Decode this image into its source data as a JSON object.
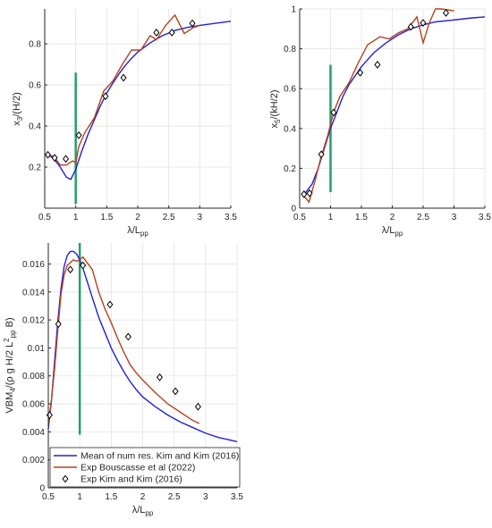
{
  "colors": {
    "mean": "#2121d9",
    "bouscasse": "#b5421c",
    "marker": "#000000",
    "vline": "#23a06a",
    "grid": "#e3e3e3",
    "axis": "#262626"
  },
  "legend": {
    "mean_label": "Mean of num res. Kim and Kim (2016)",
    "bouscasse_label": "Exp Bouscasse et al (2022)",
    "kim_label": "Exp Kim and Kim (2016)"
  },
  "chart_data": [
    {
      "type": "line",
      "xlabel": {
        "main": "λ/L",
        "sub": "pp"
      },
      "ylabel": {
        "prefix": "x",
        "sub": "3",
        "suffix": "/(H/2)"
      },
      "xlim": [
        0.5,
        3.5
      ],
      "ylim": [
        0.0,
        0.97
      ],
      "xticks": [
        "0.5",
        "1",
        "1.5",
        "2",
        "2.5",
        "3",
        "3.5"
      ],
      "yticks": [
        "0.2",
        "0.4",
        "0.6",
        "0.8"
      ],
      "grid": true,
      "vline_x": 1.0,
      "vline_range": [
        0.02,
        0.66
      ],
      "series": [
        {
          "key": "mean",
          "x": [
            0.55,
            0.65,
            0.75,
            0.85,
            0.92,
            1.0,
            1.1,
            1.2,
            1.3,
            1.4,
            1.5,
            1.6,
            1.7,
            1.8,
            1.9,
            2.0,
            2.2,
            2.4,
            2.6,
            2.8,
            3.0,
            3.2,
            3.5
          ],
          "y": [
            0.26,
            0.24,
            0.2,
            0.15,
            0.14,
            0.19,
            0.28,
            0.36,
            0.43,
            0.5,
            0.56,
            0.61,
            0.655,
            0.695,
            0.73,
            0.76,
            0.805,
            0.84,
            0.865,
            0.88,
            0.89,
            0.898,
            0.91
          ]
        },
        {
          "key": "bouscasse",
          "x": [
            0.55,
            0.65,
            0.75,
            0.85,
            0.95,
            1.0,
            1.05,
            1.15,
            1.3,
            1.45,
            1.6,
            1.75,
            1.9,
            2.05,
            2.2,
            2.3,
            2.45,
            2.6,
            2.75,
            2.9,
            3.0
          ],
          "y": [
            0.26,
            0.25,
            0.21,
            0.21,
            0.23,
            0.22,
            0.3,
            0.37,
            0.44,
            0.57,
            0.62,
            0.7,
            0.77,
            0.77,
            0.84,
            0.82,
            0.89,
            0.94,
            0.85,
            0.88,
            0.89
          ]
        }
      ],
      "markers": {
        "x": [
          0.55,
          0.66,
          0.84,
          1.05,
          1.48,
          1.77,
          2.3,
          2.55,
          2.88
        ],
        "y": [
          0.26,
          0.245,
          0.24,
          0.355,
          0.545,
          0.635,
          0.855,
          0.855,
          0.9
        ]
      }
    },
    {
      "type": "line",
      "xlabel": {
        "main": "λ/L",
        "sub": "pp"
      },
      "ylabel": {
        "prefix": "x",
        "sub": "5",
        "suffix": "/(kH/2)"
      },
      "xlim": [
        0.5,
        3.5
      ],
      "ylim": [
        0.0,
        1.0
      ],
      "xticks": [
        "0.5",
        "1",
        "1.5",
        "2",
        "2.5",
        "3",
        "3.5"
      ],
      "yticks": [
        "0",
        "0.2",
        "0.4",
        "0.6",
        "0.8",
        "1"
      ],
      "grid": true,
      "vline_x": 1.0,
      "vline_range": [
        0.08,
        0.72
      ],
      "series": [
        {
          "key": "mean",
          "x": [
            0.55,
            0.6,
            0.7,
            0.8,
            0.9,
            1.0,
            1.1,
            1.2,
            1.3,
            1.5,
            1.7,
            1.9,
            2.1,
            2.3,
            2.5,
            2.7,
            3.0,
            3.3,
            3.5
          ],
          "y": [
            0.06,
            0.08,
            0.12,
            0.2,
            0.3,
            0.4,
            0.48,
            0.56,
            0.62,
            0.71,
            0.78,
            0.83,
            0.87,
            0.9,
            0.92,
            0.935,
            0.945,
            0.955,
            0.96
          ]
        },
        {
          "key": "bouscasse",
          "x": [
            0.55,
            0.6,
            0.65,
            0.75,
            0.85,
            0.95,
            1.05,
            1.15,
            1.3,
            1.45,
            1.6,
            1.8,
            1.95,
            2.1,
            2.25,
            2.4,
            2.5,
            2.6,
            2.7,
            2.8,
            3.0
          ],
          "y": [
            0.06,
            0.05,
            0.03,
            0.14,
            0.26,
            0.36,
            0.48,
            0.56,
            0.63,
            0.73,
            0.82,
            0.86,
            0.85,
            0.88,
            0.9,
            0.96,
            0.83,
            0.93,
            1.0,
            1.0,
            0.99
          ]
        }
      ],
      "markers": {
        "x": [
          0.57,
          0.66,
          0.85,
          1.05,
          1.48,
          1.76,
          2.3,
          2.5,
          2.87
        ],
        "y": [
          0.07,
          0.075,
          0.27,
          0.48,
          0.68,
          0.72,
          0.91,
          0.93,
          0.98
        ]
      }
    },
    {
      "type": "line",
      "xlabel": {
        "main": "λ/L",
        "sub": "pp"
      },
      "ylabel": {
        "prefix": "VBM",
        "sub": "4",
        "suffix": "/(ρ g H/2 L",
        "sup2": "2",
        "sub2": "pp",
        "tail": " B)"
      },
      "xlim": [
        0.5,
        3.5
      ],
      "ylim": [
        0.0,
        0.0175
      ],
      "xticks": [
        "0.5",
        "1",
        "1.5",
        "2",
        "2.5",
        "3",
        "3.5"
      ],
      "yticks": [
        "0",
        "0.002",
        "0.004",
        "0.006",
        "0.008",
        "0.01",
        "0.012",
        "0.014",
        "0.016"
      ],
      "grid": true,
      "vline_x": 1.0,
      "vline_range": [
        0.0038,
        0.0175
      ],
      "series": [
        {
          "key": "mean",
          "x": [
            0.5,
            0.55,
            0.6,
            0.65,
            0.7,
            0.75,
            0.8,
            0.85,
            0.9,
            0.95,
            1.0,
            1.05,
            1.1,
            1.2,
            1.3,
            1.4,
            1.5,
            1.6,
            1.7,
            1.8,
            1.9,
            2.0,
            2.2,
            2.4,
            2.6,
            2.8,
            3.0,
            3.2,
            3.5
          ],
          "y": [
            0.0042,
            0.0062,
            0.009,
            0.0118,
            0.0142,
            0.0158,
            0.0166,
            0.0169,
            0.0169,
            0.0167,
            0.0163,
            0.0157,
            0.015,
            0.0136,
            0.0122,
            0.0111,
            0.01,
            0.0091,
            0.0083,
            0.0076,
            0.007,
            0.0065,
            0.0058,
            0.0052,
            0.0047,
            0.0043,
            0.0039,
            0.0036,
            0.0033
          ]
        },
        {
          "key": "bouscasse",
          "x": [
            0.5,
            0.55,
            0.6,
            0.65,
            0.7,
            0.75,
            0.8,
            0.9,
            0.95,
            1.0,
            1.05,
            1.1,
            1.2,
            1.3,
            1.4,
            1.5,
            1.6,
            1.7,
            1.8,
            1.9,
            2.0,
            2.2,
            2.4,
            2.6,
            2.7,
            2.8,
            2.9
          ],
          "y": [
            0.0045,
            0.0063,
            0.0085,
            0.0112,
            0.0138,
            0.0152,
            0.0159,
            0.0163,
            0.0162,
            0.0163,
            0.0165,
            0.0162,
            0.0156,
            0.014,
            0.0128,
            0.0118,
            0.0107,
            0.0097,
            0.0088,
            0.0082,
            0.0077,
            0.0068,
            0.006,
            0.0054,
            0.0051,
            0.0048,
            0.0046
          ]
        }
      ],
      "markers": {
        "x": [
          0.52,
          0.66,
          0.85,
          1.05,
          1.48,
          1.77,
          2.27,
          2.52,
          2.88
        ],
        "y": [
          0.0052,
          0.0117,
          0.0156,
          0.0159,
          0.0131,
          0.0108,
          0.0079,
          0.0069,
          0.0058
        ]
      }
    }
  ]
}
